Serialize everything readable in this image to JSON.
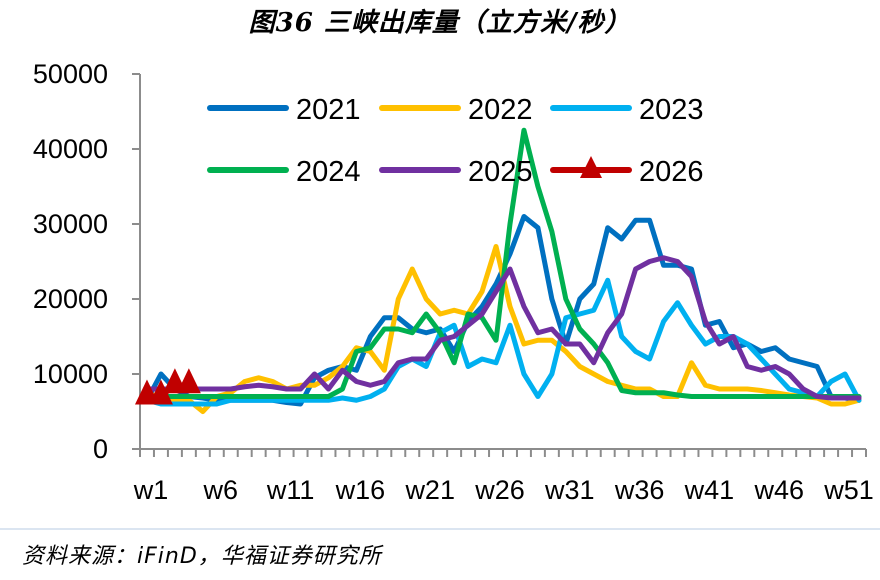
{
  "title": "图36 三峡出库量（立方米/秒）",
  "source": "资料来源：iFinD，华福证券研究所",
  "chart_data": {
    "type": "line",
    "title": "图36 三峡出库量（立方米/秒）",
    "xlabel": "",
    "ylabel": "",
    "ylim": [
      0,
      50000
    ],
    "yticks": [
      0,
      10000,
      20000,
      30000,
      40000,
      50000
    ],
    "ytick_labels": [
      "0",
      "10000",
      "20000",
      "30000",
      "40000",
      "50000"
    ],
    "x_tick_labels": [
      "w1",
      "w6",
      "w11",
      "w16",
      "w21",
      "w26",
      "w31",
      "w36",
      "w41",
      "w46",
      "w51"
    ],
    "x_tick_positions": [
      1,
      6,
      11,
      16,
      21,
      26,
      31,
      36,
      41,
      46,
      51
    ],
    "x_range": [
      1,
      52
    ],
    "grid": false,
    "legend_position": "top-inside",
    "series": [
      {
        "name": "2021",
        "color": "#0070c0",
        "marker": "none",
        "values": [
          6500,
          10000,
          8000,
          7000,
          6800,
          6500,
          6500,
          6500,
          6500,
          6500,
          6200,
          6000,
          9500,
          10500,
          11000,
          10500,
          15000,
          17500,
          17500,
          16000,
          15500,
          16000,
          13000,
          17000,
          19000,
          22000,
          26000,
          31000,
          29500,
          20000,
          14000,
          20000,
          22000,
          29500,
          28000,
          30500,
          30500,
          24500,
          24500,
          24000,
          16500,
          17000,
          13500,
          14000,
          13000,
          13500,
          12000,
          11500,
          11000,
          7000,
          6800,
          6500
        ]
      },
      {
        "name": "2022",
        "color": "#ffc000",
        "marker": "none",
        "values": [
          6800,
          7500,
          6500,
          6500,
          5000,
          7000,
          7500,
          9000,
          9500,
          9000,
          8000,
          8500,
          8500,
          9500,
          11000,
          13500,
          13000,
          10500,
          20000,
          24000,
          20000,
          18000,
          18500,
          18000,
          21000,
          27000,
          19000,
          14000,
          14500,
          14500,
          13000,
          11000,
          10000,
          9000,
          8500,
          8000,
          8000,
          7000,
          7000,
          11500,
          8500,
          8000,
          8000,
          8000,
          7800,
          7500,
          7200,
          7000,
          6800,
          6000,
          6000,
          6500
        ]
      },
      {
        "name": "2023",
        "color": "#00b0f0",
        "marker": "none",
        "values": [
          6500,
          6000,
          6000,
          6000,
          6000,
          6000,
          6500,
          6500,
          6500,
          6500,
          6500,
          6500,
          6500,
          6500,
          6800,
          6500,
          7000,
          8000,
          11000,
          12000,
          11000,
          15500,
          16500,
          11000,
          12000,
          11500,
          16500,
          10000,
          7000,
          10000,
          17500,
          18000,
          18500,
          22500,
          15000,
          13000,
          12000,
          17000,
          19500,
          16500,
          14000,
          15000,
          15000,
          14000,
          12000,
          10000,
          8000,
          7500,
          7000,
          9000,
          10000,
          6500
        ]
      },
      {
        "name": "2024",
        "color": "#00b050",
        "marker": "none",
        "values": [
          7000,
          7000,
          7000,
          7000,
          7000,
          7000,
          7000,
          7000,
          7000,
          7000,
          7000,
          7000,
          7000,
          7000,
          8000,
          13000,
          13500,
          16000,
          16000,
          15500,
          18000,
          15500,
          11500,
          18000,
          17500,
          14500,
          30000,
          42500,
          35000,
          29000,
          20000,
          16000,
          14000,
          11500,
          7800,
          7500,
          7500,
          7500,
          7200,
          7000,
          7000,
          7000,
          7000,
          7000,
          7000,
          7000,
          7000,
          7000,
          7000,
          7000,
          7000,
          7000
        ]
      },
      {
        "name": "2025",
        "color": "#7030a0",
        "marker": "none",
        "values": [
          8000,
          8000,
          8000,
          8000,
          8000,
          8000,
          8000,
          8300,
          8500,
          8300,
          8000,
          8000,
          10000,
          8000,
          10500,
          9000,
          8500,
          9000,
          11500,
          12000,
          12000,
          14500,
          15000,
          16500,
          18000,
          21000,
          24000,
          19000,
          15500,
          16000,
          14000,
          14000,
          11500,
          15500,
          18000,
          24000,
          25000,
          25500,
          25000,
          23000,
          17000,
          14000,
          15000,
          11000,
          10500,
          11000,
          10000,
          8000,
          7000,
          6800,
          6800,
          6800
        ]
      },
      {
        "name": "2026",
        "color": "#c00000",
        "marker": "triangle",
        "values": [
          7000,
          7000,
          8500,
          8500,
          null,
          null,
          null,
          null,
          null,
          null,
          null,
          null,
          null,
          null,
          null,
          null,
          null,
          null,
          null,
          null,
          null,
          null,
          null,
          null,
          null,
          null,
          null,
          null,
          null,
          null,
          null,
          null,
          null,
          null,
          null,
          null,
          null,
          null,
          null,
          null,
          null,
          null,
          null,
          null,
          null,
          null,
          null,
          null,
          null,
          null,
          null,
          null
        ]
      }
    ]
  },
  "legend": [
    {
      "label": "2021",
      "color": "#0070c0",
      "marker": "none"
    },
    {
      "label": "2022",
      "color": "#ffc000",
      "marker": "none"
    },
    {
      "label": "2023",
      "color": "#00b0f0",
      "marker": "none"
    },
    {
      "label": "2024",
      "color": "#00b050",
      "marker": "none"
    },
    {
      "label": "2025",
      "color": "#7030a0",
      "marker": "none"
    },
    {
      "label": "2026",
      "color": "#c00000",
      "marker": "triangle"
    }
  ]
}
